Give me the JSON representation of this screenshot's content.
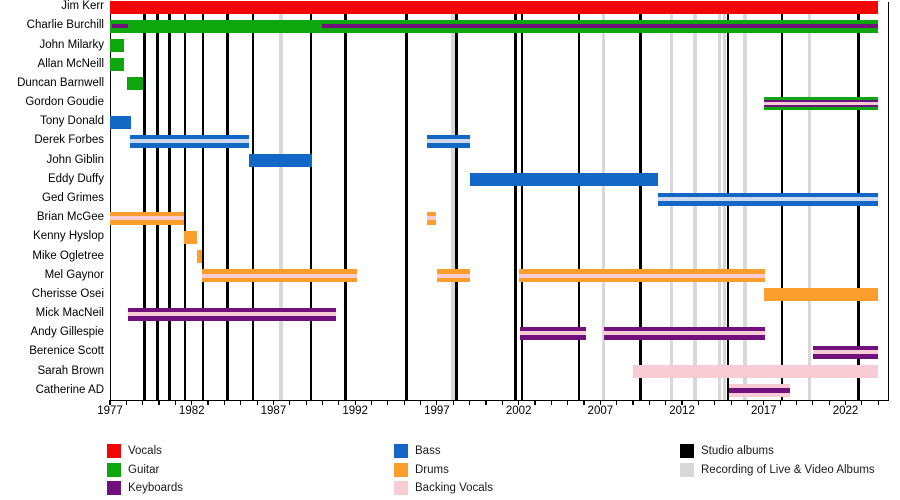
{
  "chart_data": {
    "type": "timeline",
    "description": "Band members timeline chart with instrument roles, studio album and live/video recording markers",
    "x_axis": {
      "start_year": 1977,
      "axis_end_year": 2024.6,
      "bars_end_year": 2024.0,
      "minor_tick_every_years": 1,
      "tick_label_years": [
        1977,
        1982,
        1987,
        1992,
        1997,
        2002,
        2007,
        2012,
        2017,
        2022
      ],
      "tick_labels": [
        "1977",
        "1982",
        "1987",
        "1992",
        "1997",
        "2002",
        "2007",
        "2012",
        "2017",
        "2022"
      ]
    },
    "role_colors": {
      "vocals": "#f20505",
      "guitar": "#0da60d",
      "keyboards": "#72117e",
      "bass": "#1268c4",
      "drums": "#fc9e2d",
      "backing_vocals": "#f8ccd5",
      "backing_vocals_pale": "#ccd9ee"
    },
    "marker_colors": {
      "studio_album_line": "#000000",
      "live_video_line": "#d8d8d8"
    },
    "studio_album_years": [
      1979.1,
      1979.9,
      1980.65,
      1981.6,
      1982.7,
      1984.2,
      1985.75,
      1989.3,
      1991.4,
      1995.15,
      1998.2,
      2001.8,
      2002.2,
      2005.7,
      2009.45,
      2014.8,
      2018.1,
      2022.8
    ],
    "live_video_recording_years": [
      1987.45,
      1998.0,
      2007.2,
      2011.35,
      2012.8,
      2014.3,
      2014.6,
      2015.85,
      2019.8
    ],
    "members": [
      {
        "name": "Jim Kerr",
        "bars": [
          {
            "role": "vocals",
            "start": 1977.0,
            "end": 2024.0
          }
        ]
      },
      {
        "name": "Charlie Burchill",
        "bars": [
          {
            "role": "guitar",
            "start": 1977.0,
            "end": 2024.0,
            "overlays": [
              {
                "role": "keyboards",
                "start": 1977.15,
                "end": 1978.1,
                "h": 4
              },
              {
                "role": "keyboards",
                "start": 1990.0,
                "end": 2024.0,
                "h": 4
              }
            ]
          }
        ]
      },
      {
        "name": "John Milarky",
        "bars": [
          {
            "role": "guitar",
            "start": 1977.0,
            "end": 1977.85
          }
        ]
      },
      {
        "name": "Allan McNeill",
        "bars": [
          {
            "role": "guitar",
            "start": 1977.0,
            "end": 1977.85
          }
        ]
      },
      {
        "name": "Duncan Barnwell",
        "bars": [
          {
            "role": "guitar",
            "start": 1978.05,
            "end": 1979.0
          }
        ]
      },
      {
        "name": "Gordon Goudie",
        "bars": [
          {
            "role": "guitar",
            "start": 2017.0,
            "end": 2024.0,
            "overlays": [
              {
                "role": "keyboards",
                "h": 7
              },
              {
                "role": "backing_vocals",
                "h": 3
              }
            ]
          }
        ]
      },
      {
        "name": "Tony Donald",
        "bars": [
          {
            "role": "bass",
            "start": 1977.0,
            "end": 1978.3
          }
        ]
      },
      {
        "name": "Derek Forbes",
        "bars": [
          {
            "role": "bass",
            "start": 1978.2,
            "end": 1985.5,
            "overlays": [
              {
                "role": "backing_vocals_pale",
                "h": 4
              }
            ]
          },
          {
            "role": "bass",
            "start": 1996.4,
            "end": 1999.0,
            "overlays": [
              {
                "role": "backing_vocals_pale",
                "h": 4
              }
            ]
          }
        ]
      },
      {
        "name": "John Giblin",
        "bars": [
          {
            "role": "bass",
            "start": 1985.5,
            "end": 1989.35
          }
        ]
      },
      {
        "name": "Eddy Duffy",
        "bars": [
          {
            "role": "bass",
            "start": 1999.0,
            "end": 2010.5
          }
        ]
      },
      {
        "name": "Ged Grimes",
        "bars": [
          {
            "role": "bass",
            "start": 2010.5,
            "end": 2024.0,
            "overlays": [
              {
                "role": "backing_vocals_pale",
                "h": 4
              }
            ]
          }
        ]
      },
      {
        "name": "Brian McGee",
        "bars": [
          {
            "role": "drums",
            "start": 1977.0,
            "end": 1981.5,
            "overlays": [
              {
                "role": "backing_vocals",
                "h": 4
              }
            ]
          },
          {
            "role": "drums",
            "start": 1996.4,
            "end": 1996.95,
            "overlays": [
              {
                "role": "backing_vocals",
                "h": 4
              }
            ]
          }
        ]
      },
      {
        "name": "Kenny Hyslop",
        "bars": [
          {
            "role": "drums",
            "start": 1981.5,
            "end": 1982.3
          }
        ]
      },
      {
        "name": "Mike Ogletree",
        "bars": [
          {
            "role": "drums",
            "start": 1982.3,
            "end": 1982.65
          }
        ]
      },
      {
        "name": "Mel Gaynor",
        "bars": [
          {
            "role": "drums",
            "start": 1982.65,
            "end": 1992.1,
            "overlays": [
              {
                "role": "backing_vocals",
                "h": 4
              }
            ]
          },
          {
            "role": "drums",
            "start": 1997.0,
            "end": 1999.0,
            "overlays": [
              {
                "role": "backing_vocals",
                "h": 4
              }
            ]
          },
          {
            "role": "drums",
            "start": 2002.05,
            "end": 2017.1,
            "overlays": [
              {
                "role": "backing_vocals",
                "h": 4
              }
            ]
          }
        ]
      },
      {
        "name": "Cherisse Osei",
        "bars": [
          {
            "role": "drums",
            "start": 2017.0,
            "end": 2024.0
          }
        ]
      },
      {
        "name": "Mick MacNeil",
        "bars": [
          {
            "role": "keyboards",
            "start": 1978.1,
            "end": 1990.85,
            "overlays": [
              {
                "role": "backing_vocals",
                "h": 4
              }
            ]
          }
        ]
      },
      {
        "name": "Andy Gillespie",
        "bars": [
          {
            "role": "keyboards",
            "start": 2002.1,
            "end": 2006.1,
            "overlays": [
              {
                "role": "backing_vocals",
                "h": 4
              }
            ]
          },
          {
            "role": "keyboards",
            "start": 2007.2,
            "end": 2017.05,
            "overlays": [
              {
                "role": "backing_vocals",
                "h": 4
              }
            ]
          }
        ]
      },
      {
        "name": "Berenice Scott",
        "bars": [
          {
            "role": "keyboards",
            "start": 2020.0,
            "end": 2024.0,
            "overlays": [
              {
                "role": "backing_vocals",
                "h": 4
              }
            ]
          }
        ]
      },
      {
        "name": "Sarah Brown",
        "bars": [
          {
            "role": "backing_vocals",
            "start": 2009.0,
            "end": 2024.0
          }
        ]
      },
      {
        "name": "Catherine AD",
        "bars": [
          {
            "role": "backing_vocals",
            "start": 2014.85,
            "end": 2018.6,
            "overlays": [
              {
                "role": "keyboards",
                "h": 5
              }
            ]
          }
        ]
      }
    ]
  },
  "legend": {
    "columns": [
      {
        "items": [
          {
            "label": "Vocals",
            "color": "#f20505"
          },
          {
            "label": "Guitar",
            "color": "#0da60d"
          },
          {
            "label": "Keyboards",
            "color": "#72117e"
          }
        ]
      },
      {
        "items": [
          {
            "label": "Bass",
            "color": "#1268c4"
          },
          {
            "label": "Drums",
            "color": "#fc9e2d"
          },
          {
            "label": "Backing Vocals",
            "color": "#f8ccd5"
          }
        ]
      },
      {
        "items": [
          {
            "label": "Studio albums",
            "color": "#000000"
          },
          {
            "label": "Recording of Live & Video Albums",
            "color": "#d8d8d8"
          }
        ]
      }
    ]
  }
}
